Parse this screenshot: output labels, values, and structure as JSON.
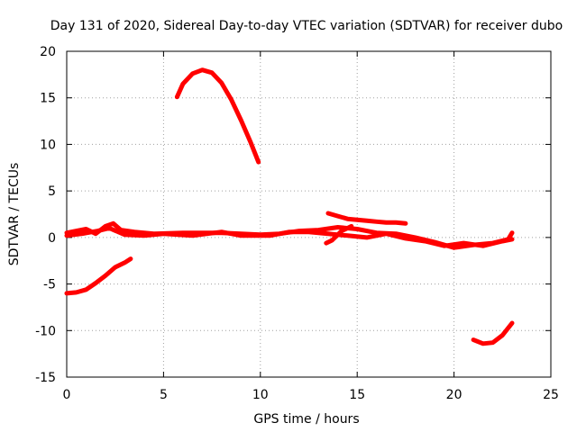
{
  "chart_data": {
    "type": "line",
    "title": "Day 131 of 2020, Sidereal Day-to-day VTEC variation (SDTVAR) for receiver dubo",
    "xlabel": "GPS time / hours",
    "ylabel": "SDTVAR / TECUs",
    "xlim": [
      0,
      25
    ],
    "ylim": [
      -15,
      20
    ],
    "xticks": [
      0,
      5,
      10,
      15,
      20,
      25
    ],
    "yticks": [
      -15,
      -10,
      -5,
      0,
      5,
      10,
      15,
      20
    ],
    "grid": true,
    "series_color": "#ff0000",
    "series": [
      {
        "name": "arc-upper",
        "points": [
          [
            5.7,
            15.1
          ],
          [
            6.0,
            16.5
          ],
          [
            6.5,
            17.6
          ],
          [
            7.0,
            18.0
          ],
          [
            7.5,
            17.7
          ],
          [
            8.0,
            16.6
          ],
          [
            8.5,
            14.8
          ],
          [
            9.0,
            12.6
          ],
          [
            9.5,
            10.2
          ],
          [
            9.9,
            8.1
          ]
        ]
      },
      {
        "name": "arc-low-left",
        "points": [
          [
            0.0,
            -6.0
          ],
          [
            0.5,
            -5.9
          ],
          [
            1.0,
            -5.6
          ],
          [
            1.5,
            -4.9
          ],
          [
            2.0,
            -4.1
          ],
          [
            2.5,
            -3.2
          ],
          [
            3.0,
            -2.7
          ],
          [
            3.3,
            -2.3
          ]
        ]
      },
      {
        "name": "arc-low-right",
        "points": [
          [
            21.0,
            -11.0
          ],
          [
            21.5,
            -11.4
          ],
          [
            22.0,
            -11.3
          ],
          [
            22.5,
            -10.5
          ],
          [
            23.0,
            -9.2
          ]
        ]
      },
      {
        "name": "main-band-a",
        "points": [
          [
            0.0,
            0.5
          ],
          [
            0.5,
            0.7
          ],
          [
            1.0,
            0.9
          ],
          [
            1.5,
            0.4
          ],
          [
            2.0,
            1.2
          ],
          [
            2.4,
            1.5
          ],
          [
            2.8,
            0.8
          ],
          [
            3.5,
            0.6
          ],
          [
            4.5,
            0.4
          ],
          [
            6.0,
            0.5
          ],
          [
            8.0,
            0.5
          ],
          [
            10.0,
            0.3
          ],
          [
            11.0,
            0.4
          ],
          [
            12.0,
            0.7
          ],
          [
            13.0,
            0.8
          ],
          [
            14.0,
            1.1
          ],
          [
            15.0,
            0.9
          ],
          [
            16.0,
            0.5
          ],
          [
            17.0,
            0.4
          ],
          [
            18.0,
            0.0
          ],
          [
            19.0,
            -0.5
          ],
          [
            20.0,
            -1.1
          ],
          [
            21.0,
            -0.8
          ],
          [
            22.0,
            -0.6
          ],
          [
            22.8,
            -0.2
          ],
          [
            23.0,
            0.5
          ]
        ]
      },
      {
        "name": "main-band-b",
        "points": [
          [
            0.0,
            0.2
          ],
          [
            0.8,
            0.4
          ],
          [
            1.6,
            0.7
          ],
          [
            2.2,
            1.0
          ],
          [
            3.0,
            0.3
          ],
          [
            4.0,
            0.2
          ],
          [
            5.0,
            0.4
          ],
          [
            6.5,
            0.2
          ],
          [
            8.0,
            0.6
          ],
          [
            9.0,
            0.2
          ],
          [
            10.5,
            0.2
          ],
          [
            11.5,
            0.6
          ],
          [
            12.5,
            0.6
          ],
          [
            13.5,
            0.4
          ],
          [
            14.5,
            0.2
          ],
          [
            15.5,
            0.0
          ],
          [
            16.5,
            0.4
          ],
          [
            17.5,
            -0.1
          ],
          [
            18.5,
            -0.4
          ],
          [
            19.5,
            -0.9
          ],
          [
            20.5,
            -0.6
          ],
          [
            21.5,
            -0.9
          ],
          [
            22.5,
            -0.4
          ],
          [
            23.0,
            -0.2
          ]
        ]
      },
      {
        "name": "arc-mid-right",
        "points": [
          [
            13.5,
            2.6
          ],
          [
            14.0,
            2.3
          ],
          [
            14.5,
            2.0
          ],
          [
            15.0,
            1.9
          ],
          [
            15.5,
            1.8
          ],
          [
            16.0,
            1.7
          ],
          [
            16.5,
            1.6
          ],
          [
            17.0,
            1.6
          ],
          [
            17.5,
            1.5
          ]
        ]
      },
      {
        "name": "arc-dip",
        "points": [
          [
            13.4,
            -0.6
          ],
          [
            13.7,
            -0.3
          ],
          [
            14.2,
            0.7
          ],
          [
            14.7,
            1.2
          ]
        ]
      }
    ]
  }
}
